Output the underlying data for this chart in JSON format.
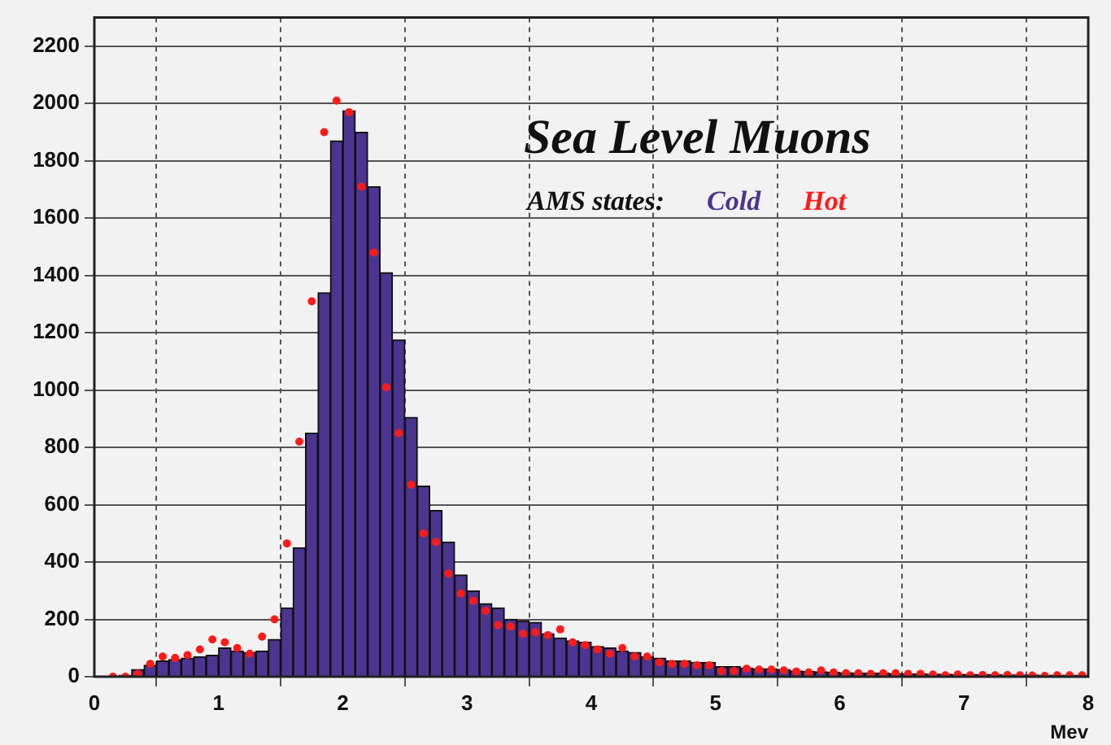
{
  "chart_data": {
    "type": "histogram",
    "title": "Sea Level Muons",
    "legend_title": "AMS states:",
    "xlabel": "Mev",
    "bins": [
      0,
      0.1,
      0.2,
      0.3,
      0.4,
      0.5,
      0.6,
      0.7,
      0.8,
      0.9,
      1,
      1.1,
      1.2,
      1.3,
      1.4,
      1.5,
      1.6,
      1.7,
      1.8,
      1.9,
      2,
      2.1,
      2.2,
      2.3,
      2.4,
      2.5,
      2.6,
      2.7,
      2.8,
      2.9,
      3,
      3.1,
      3.2,
      3.3,
      3.4,
      3.5,
      3.6,
      3.7,
      3.8,
      3.9,
      4,
      4.1,
      4.2,
      4.3,
      4.4,
      4.5,
      4.6,
      4.7,
      4.8,
      4.9,
      5,
      5.1,
      5.2,
      5.3,
      5.4,
      5.5,
      5.6,
      5.7,
      5.8,
      5.9,
      6,
      6.1,
      6.2,
      6.3,
      6.4,
      6.5,
      6.6,
      6.7,
      6.8,
      6.9,
      7,
      7.1,
      7.2,
      7.3,
      7.4,
      7.5,
      7.6,
      7.7,
      7.8,
      7.9,
      8
    ],
    "series": [
      {
        "name": "Cold",
        "type": "histogram",
        "color": "#4b3590",
        "values": [
          0,
          0,
          5,
          25,
          40,
          55,
          60,
          65,
          70,
          75,
          100,
          90,
          85,
          90,
          130,
          240,
          450,
          850,
          1340,
          1870,
          1975,
          1900,
          1710,
          1410,
          1175,
          905,
          665,
          580,
          470,
          355,
          300,
          255,
          240,
          200,
          195,
          190,
          150,
          135,
          125,
          120,
          105,
          100,
          90,
          85,
          70,
          65,
          55,
          55,
          50,
          50,
          35,
          35,
          30,
          28,
          27,
          25,
          20,
          18,
          17,
          15,
          14,
          13,
          12,
          12,
          11,
          10,
          10,
          9,
          9,
          8,
          8,
          7,
          7,
          6,
          6,
          6,
          5,
          5,
          5,
          5
        ]
      },
      {
        "name": "Hot",
        "type": "scatter",
        "color": "#ff1a1a",
        "marker": "circle",
        "x": [
          0.15,
          0.25,
          0.35,
          0.45,
          0.55,
          0.65,
          0.75,
          0.85,
          0.95,
          1.05,
          1.15,
          1.25,
          1.35,
          1.45,
          1.55,
          1.65,
          1.75,
          1.85,
          1.95,
          2.05,
          2.15,
          2.25,
          2.35,
          2.45,
          2.55,
          2.65,
          2.75,
          2.85,
          2.95,
          3.05,
          3.15,
          3.25,
          3.35,
          3.45,
          3.55,
          3.65,
          3.75,
          3.85,
          3.95,
          4.05,
          4.15,
          4.25,
          4.35,
          4.45,
          4.55,
          4.65,
          4.75,
          4.85,
          4.95,
          5.05,
          5.15,
          5.25,
          5.35,
          5.45,
          5.55,
          5.65,
          5.75,
          5.85,
          5.95,
          6.05,
          6.15,
          6.25,
          6.35,
          6.45,
          6.55,
          6.65,
          6.75,
          6.85,
          6.95,
          7.05,
          7.15,
          7.25,
          7.35,
          7.45,
          7.55,
          7.65,
          7.75,
          7.85,
          7.95
        ],
        "values": [
          0,
          0,
          10,
          45,
          70,
          65,
          75,
          95,
          130,
          120,
          100,
          80,
          140,
          200,
          465,
          820,
          1310,
          1900,
          2010,
          1970,
          1710,
          1480,
          1010,
          850,
          670,
          500,
          470,
          360,
          290,
          265,
          230,
          180,
          175,
          150,
          155,
          145,
          165,
          120,
          110,
          95,
          80,
          100,
          70,
          70,
          50,
          45,
          45,
          40,
          40,
          20,
          20,
          28,
          25,
          25,
          22,
          18,
          15,
          22,
          15,
          12,
          12,
          10,
          12,
          12,
          10,
          10,
          8,
          5,
          8,
          5,
          6,
          5,
          6,
          5,
          4,
          3,
          5,
          5,
          5
        ]
      }
    ],
    "xlim": [
      0,
      8
    ],
    "xticks": [
      0,
      1,
      2,
      3,
      4,
      5,
      6,
      7,
      8
    ],
    "ylim": [
      0,
      2300
    ],
    "yticks": [
      0,
      200,
      400,
      600,
      800,
      1000,
      1200,
      1400,
      1600,
      1800,
      2000,
      2200
    ],
    "grid": true,
    "legend": "top right"
  }
}
